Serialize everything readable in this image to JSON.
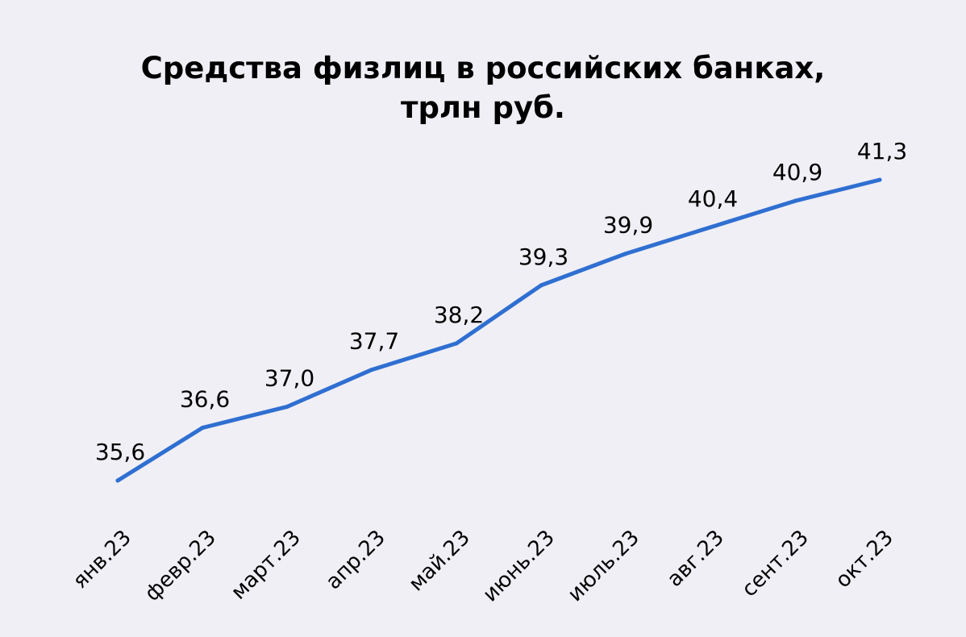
{
  "title_line1": "Средства физлиц в российских банках,",
  "title_line2": "трлн руб.",
  "chart_data": {
    "type": "line",
    "title": "Средства физлиц в российских банках, трлн руб.",
    "categories": [
      "янв.23",
      "февр.23",
      "март.23",
      "апр.23",
      "май.23",
      "июнь.23",
      "июль.23",
      "авг.23",
      "сент.23",
      "окт.23"
    ],
    "value_labels": [
      "35,6",
      "36,6",
      "37,0",
      "37,7",
      "38,2",
      "39,3",
      "39,9",
      "40,4",
      "40,9",
      "41,3"
    ],
    "series": [
      {
        "values": [
          35.6,
          36.6,
          37.0,
          37.7,
          38.2,
          39.3,
          39.9,
          40.4,
          40.9,
          41.3
        ],
        "color": "#2f6fd1"
      }
    ],
    "grid": false,
    "legend": "none"
  }
}
